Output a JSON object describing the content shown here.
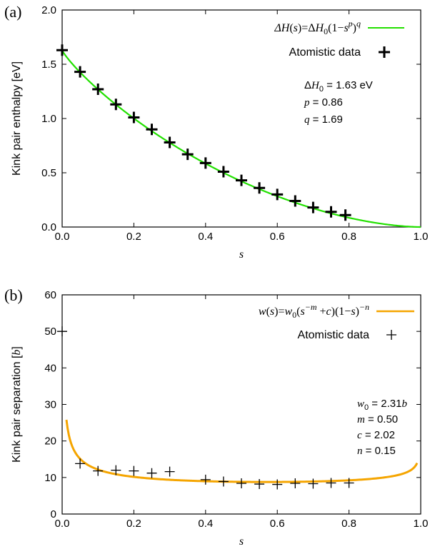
{
  "chart_data": [
    {
      "type": "line",
      "panel_label": "(a)",
      "xlabel": "s",
      "ylabel": "Kink pair enthalpy [eV]",
      "xlim": [
        0.0,
        1.0
      ],
      "ylim": [
        0.0,
        2.0
      ],
      "x_ticks": [
        "0.0",
        "0.2",
        "0.4",
        "0.6",
        "0.8",
        "1.0"
      ],
      "y_ticks": [
        "0.0",
        "0.5",
        "1.0",
        "1.5",
        "2.0"
      ],
      "legend": {
        "fit_label": "ΔH(s)=ΔH0(1−s^p)^q",
        "data_label": "Atomistic data"
      },
      "fit_color": "#22e000",
      "fit_params": {
        "dH0": 1.63,
        "p": 0.86,
        "q": 1.69
      },
      "param_text": [
        "ΔH0 = 1.63 eV",
        "p = 0.86",
        "q = 1.69"
      ],
      "series": [
        {
          "name": "Atomistic data",
          "x": [
            0.0,
            0.05,
            0.1,
            0.15,
            0.2,
            0.25,
            0.3,
            0.35,
            0.4,
            0.45,
            0.5,
            0.55,
            0.6,
            0.65,
            0.7,
            0.75,
            0.79
          ],
          "y": [
            1.63,
            1.43,
            1.27,
            1.13,
            1.01,
            0.9,
            0.78,
            0.67,
            0.59,
            0.51,
            0.43,
            0.36,
            0.3,
            0.24,
            0.18,
            0.14,
            0.11
          ]
        }
      ]
    },
    {
      "type": "line",
      "panel_label": "(b)",
      "xlabel": "s",
      "ylabel": "Kink pair separation [b]",
      "xlim": [
        0.0,
        1.0
      ],
      "ylim": [
        0,
        60
      ],
      "x_ticks": [
        "0.0",
        "0.2",
        "0.4",
        "0.6",
        "0.8",
        "1.0"
      ],
      "y_ticks": [
        "0",
        "10",
        "20",
        "30",
        "40",
        "50",
        "60"
      ],
      "legend": {
        "fit_label": "w(s)=w0(s^−m +c)(1−s)^−n",
        "data_label": "Atomistic data"
      },
      "fit_color": "#f5a500",
      "fit_params": {
        "w0": 2.31,
        "m": 0.5,
        "c": 2.02,
        "n": 0.15
      },
      "param_text": [
        "w0 = 2.31b",
        "m = 0.50",
        "c = 2.02",
        "n = 0.15"
      ],
      "series": [
        {
          "name": "Atomistic data",
          "x": [
            0.0,
            0.05,
            0.1,
            0.15,
            0.2,
            0.25,
            0.3,
            0.4,
            0.45,
            0.5,
            0.55,
            0.6,
            0.65,
            0.7,
            0.75,
            0.8
          ],
          "y": [
            50.0,
            13.8,
            11.8,
            12.0,
            11.8,
            11.2,
            11.6,
            9.4,
            8.9,
            8.4,
            8.2,
            8.1,
            8.4,
            8.3,
            8.5,
            8.5
          ]
        }
      ]
    }
  ]
}
